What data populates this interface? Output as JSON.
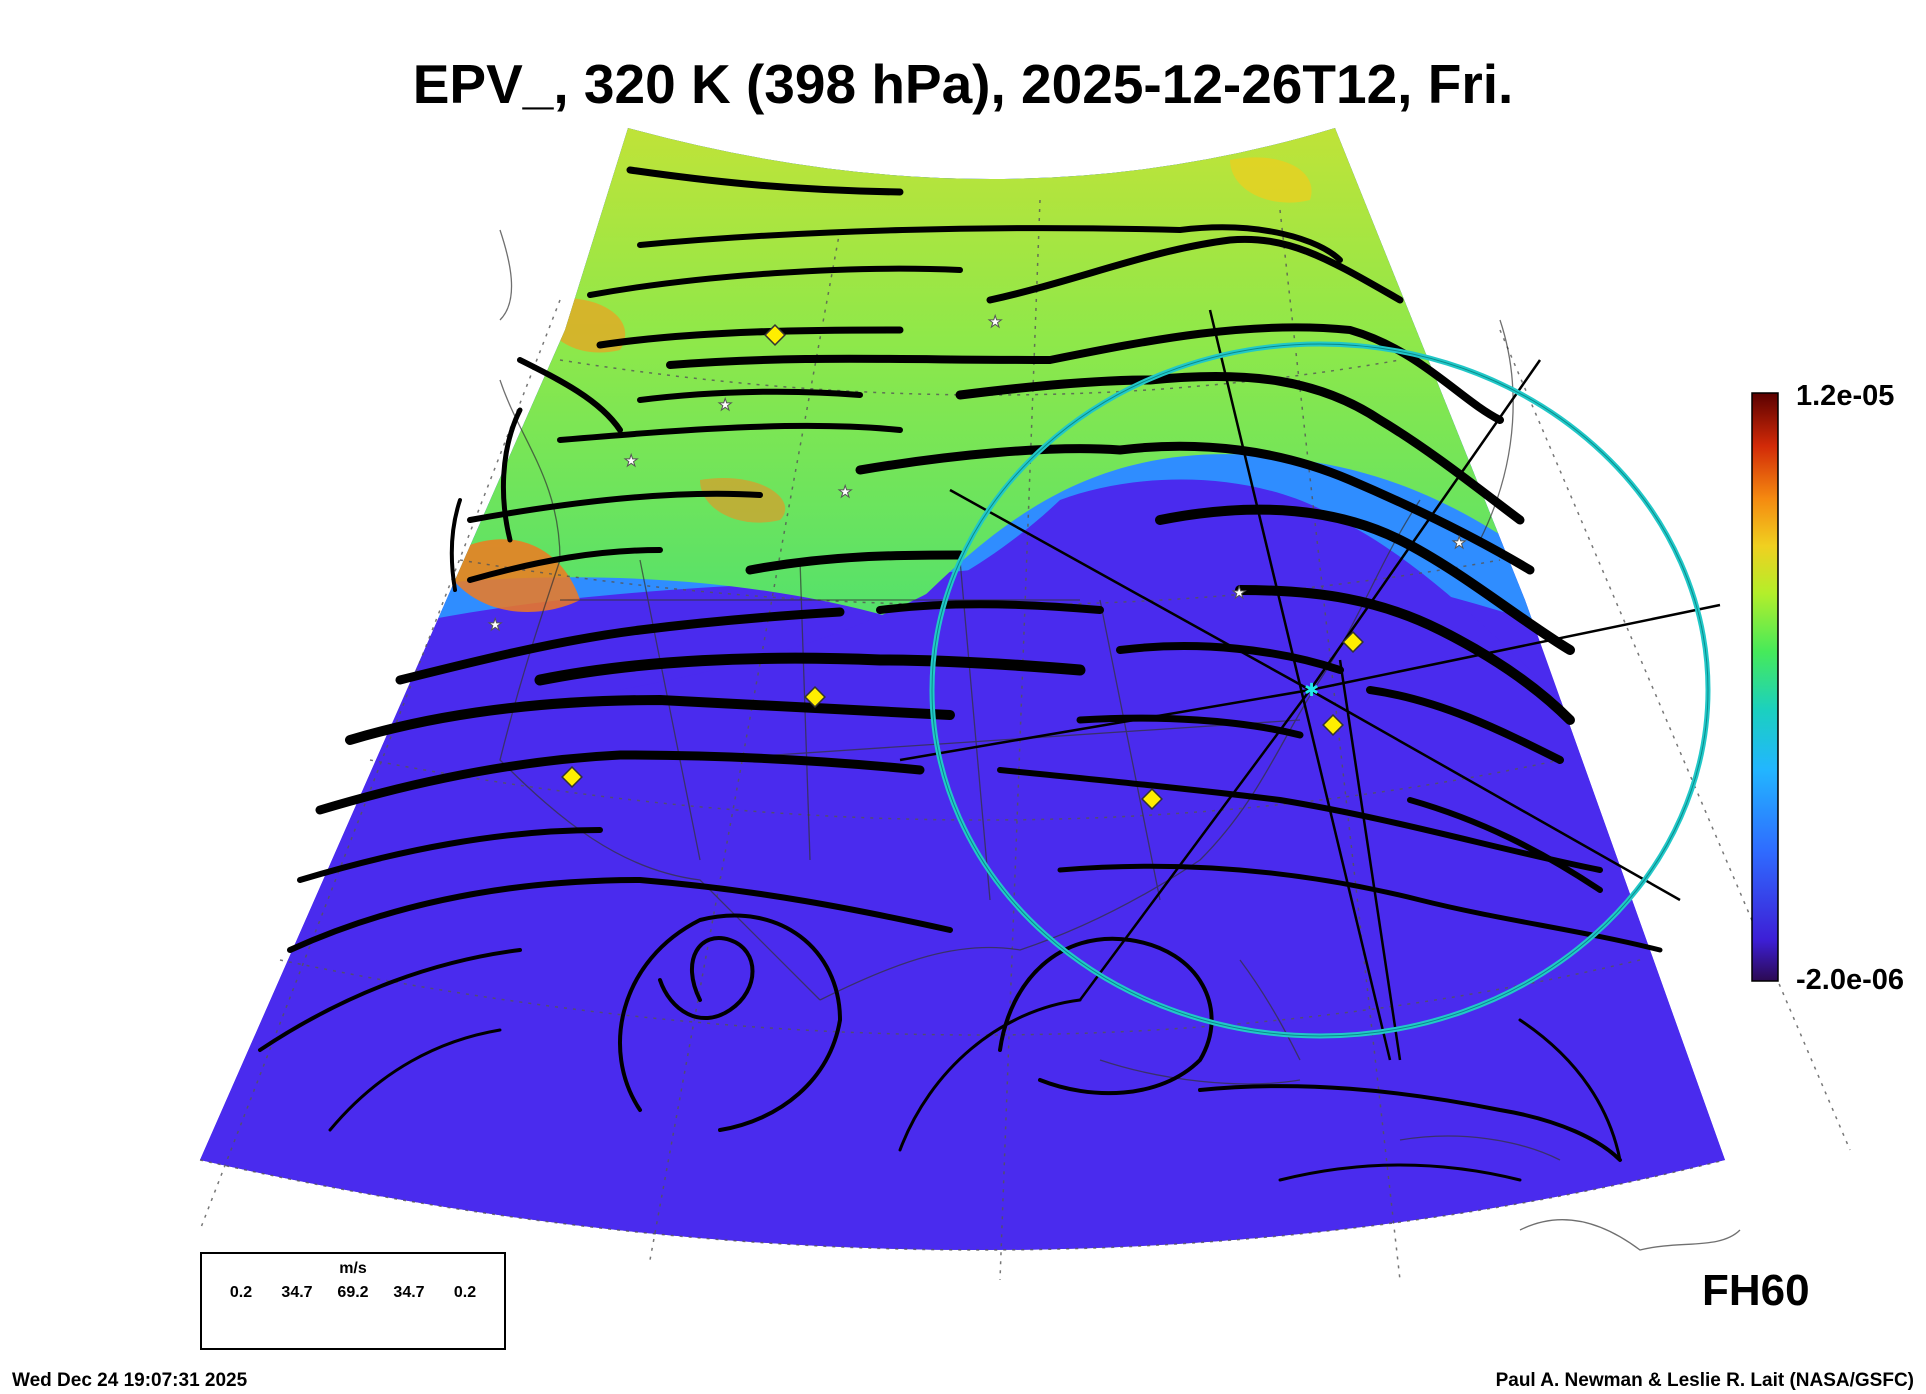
{
  "title": "EPV_, 320 K (398 hPa), 2025-12-26T12, Fri.",
  "colorbar": {
    "max_label": "1.2e-05",
    "min_label": "-2.0e-06",
    "stops": [
      "#2c0a52",
      "#3d1fd6",
      "#2f6bff",
      "#22b6ff",
      "#1bd0c0",
      "#46ea5a",
      "#b4ee2a",
      "#f0d020",
      "#f58a10",
      "#d22a08",
      "#5a0000"
    ]
  },
  "fill_colors": {
    "low": "#4a2bee",
    "mid": "#2f8dff",
    "high_green": "#5ce45c",
    "high_yellow": "#c6e236"
  },
  "legend": {
    "unit": "m/s",
    "values": [
      "0.2",
      "34.7",
      "69.2",
      "34.7",
      "0.2"
    ]
  },
  "forecast_hour": "FH60",
  "timestamp": "Wed Dec 24 19:07:31 2025",
  "credit": "Paul A. Newman & Leslie R. Lait (NASA/GSFC)",
  "range_ring_color": "#22c8c8"
}
